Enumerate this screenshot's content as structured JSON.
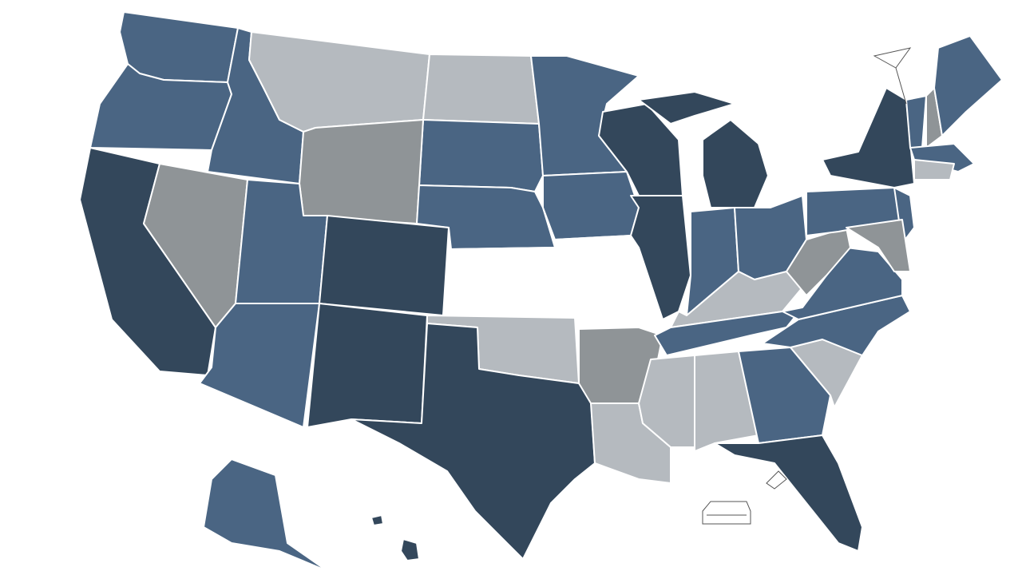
{
  "map": {
    "palette": [
      "#33475b",
      "#4a6583",
      "#b5babf",
      "#8f9497",
      "#ffffff"
    ],
    "border": "#ffffff",
    "background": "#ffffff"
  }
}
